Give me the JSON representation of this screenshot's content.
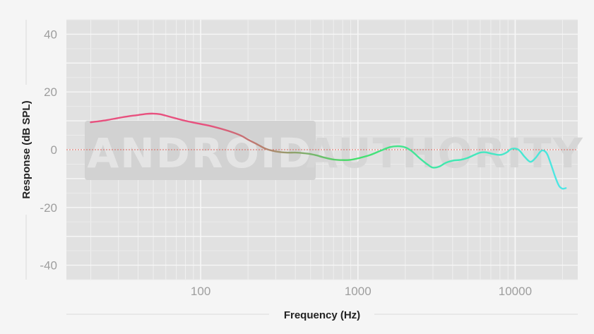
{
  "chart_data": {
    "type": "line",
    "xlabel": "Frequency (Hz)",
    "ylabel": "Response (dB SPL)",
    "x_scale": "log",
    "xlim": [
      14,
      25000
    ],
    "ylim": [
      -45,
      45
    ],
    "x_ticks": [
      100,
      1000,
      10000
    ],
    "x_tick_labels": [
      "100",
      "1000",
      "10000"
    ],
    "y_ticks": [
      40,
      20,
      0,
      -20,
      -40
    ],
    "y_tick_labels": [
      "40",
      "20",
      "0",
      "-20",
      "-40"
    ],
    "grid": true,
    "reference_line": 0,
    "watermark": [
      "ANDROID",
      "AUTHORITY"
    ],
    "series": [
      {
        "x": [
          20,
          25,
          30,
          35,
          40,
          45,
          50,
          55,
          60,
          70,
          80,
          90,
          100,
          120,
          150,
          180,
          200,
          230,
          260,
          300,
          350,
          400,
          450,
          500,
          550,
          600,
          700,
          800,
          900,
          1000,
          1200,
          1400,
          1600,
          1800,
          2000,
          2200,
          2500,
          2800,
          3000,
          3300,
          3600,
          4000,
          4500,
          5000,
          5500,
          6000,
          6500,
          7000,
          8000,
          8800,
          9500,
          10500,
          11500,
          12500,
          13500,
          14500,
          15200,
          16000,
          17000,
          18000,
          19000,
          20000,
          21000
        ],
        "values": [
          9.5,
          10.2,
          11.0,
          11.6,
          12.0,
          12.4,
          12.5,
          12.3,
          11.8,
          10.8,
          10.0,
          9.4,
          8.9,
          8.0,
          6.5,
          4.9,
          3.5,
          1.8,
          0.3,
          -0.6,
          -1.0,
          -1.0,
          -1.2,
          -1.5,
          -2.0,
          -2.6,
          -3.4,
          -3.6,
          -3.5,
          -3.0,
          -1.8,
          -0.3,
          0.9,
          1.2,
          0.8,
          -0.5,
          -3.2,
          -5.3,
          -6.2,
          -5.8,
          -4.6,
          -3.8,
          -3.5,
          -2.8,
          -1.8,
          -1.0,
          -0.9,
          -1.3,
          -1.8,
          -1.0,
          0.3,
          0.0,
          -2.5,
          -4.2,
          -2.8,
          -0.6,
          -0.3,
          -1.6,
          -5.5,
          -9.5,
          -12.5,
          -13.5,
          -13.3
        ],
        "gradient_colors": [
          "#e8507e",
          "#e8507e",
          "#b5836e",
          "#44e06a",
          "#41e8b0",
          "#4ee6e8"
        ]
      }
    ]
  }
}
